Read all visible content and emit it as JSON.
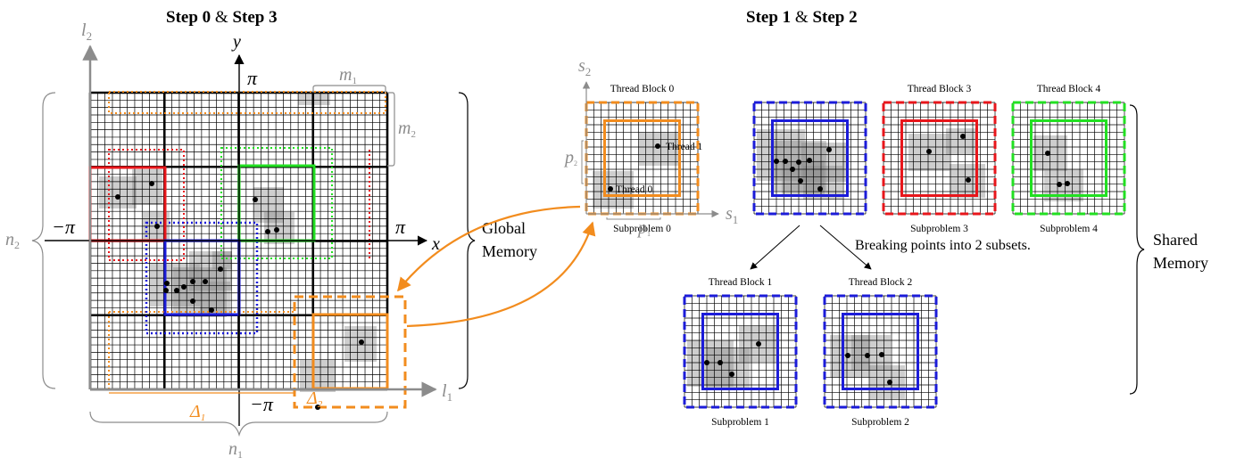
{
  "left_panel": {
    "title_step_a": "Step 0",
    "title_amp": " & ",
    "title_step_b": "Step 3",
    "axis_y": "y",
    "axis_x": "x",
    "axis_l1": "l",
    "axis_l1_sub": "1",
    "axis_l2": "l",
    "axis_l2_sub": "2",
    "pi_top": "π",
    "pi_right": "π",
    "neg_pi_left": "−π",
    "neg_pi_bottom": "−π",
    "m1": "m",
    "m1_sub": "1",
    "m2": "m",
    "m2_sub": "2",
    "n1": "n",
    "n1_sub": "1",
    "n2": "n",
    "n2_sub": "2",
    "delta1": "Δ",
    "delta1_sub": "1",
    "delta2": "Δ",
    "delta2_sub": "2"
  },
  "global_memory": [
    "Global",
    "Memory"
  ],
  "right_panel": {
    "title_step_a": "Step 1",
    "title_amp": " & ",
    "title_step_b": "Step 2",
    "axis_s1": "s",
    "axis_s1_sub": "1",
    "axis_s2": "s",
    "axis_s2_sub": "2",
    "p1": "p",
    "p1_sub": "1",
    "p2": "p",
    "p2_sub": "2",
    "thread_0": "Thread 0",
    "thread_1": "Thread 1",
    "breaking_text": "Breaking points into 2 subsets."
  },
  "blocks": [
    {
      "thread_label": "Thread Block 0",
      "sub_label": "Subproblem 0"
    },
    {
      "thread_label": "",
      "sub_label": ""
    },
    {
      "thread_label": "Thread Block 3",
      "sub_label": "Subproblem 3"
    },
    {
      "thread_label": "Thread Block 4",
      "sub_label": "Subproblem 4"
    },
    {
      "thread_label": "Thread Block 1",
      "sub_label": "Subproblem 1"
    },
    {
      "thread_label": "Thread Block 2",
      "sub_label": "Subproblem 2"
    }
  ],
  "shared_memory": [
    "Shared",
    "Memory"
  ],
  "colors": {
    "orange": "#f28c1e",
    "red": "#e8161b",
    "green": "#22e022",
    "blue": "#1c1cd9",
    "gray": "#8c8c8c"
  }
}
